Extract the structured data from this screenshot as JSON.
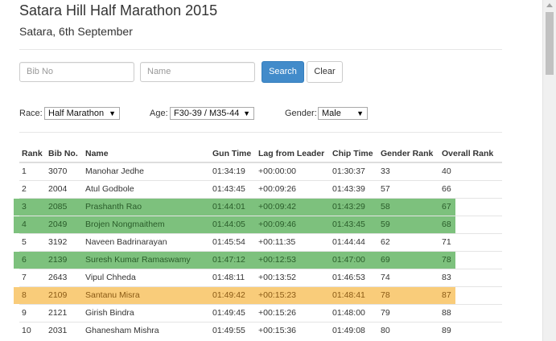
{
  "header": {
    "title": "Satara Hill Half Marathon 2015",
    "subtitle": "Satara, 6th September"
  },
  "search": {
    "bib_placeholder": "Bib No",
    "name_placeholder": "Name",
    "search_label": "Search",
    "clear_label": "Clear"
  },
  "filters": {
    "race_label": "Race:",
    "race_value": "Half Marathon",
    "age_label": "Age:",
    "age_value": "F30-39 / M35-44",
    "gender_label": "Gender:",
    "gender_value": "Male"
  },
  "colors": {
    "highlight_green": "#7dc17d",
    "highlight_orange": "#f9cc7a",
    "primary_button": "#428bca"
  },
  "table": {
    "columns": [
      "Rank",
      "Bib No.",
      "Name",
      "Gun Time",
      "Lag from Leader",
      "Chip Time",
      "Gender Rank",
      "Overall Rank"
    ],
    "rows": [
      {
        "rank": "1",
        "bib": "3070",
        "name": "Manohar Jedhe",
        "gun": "01:34:19",
        "lag": "+00:00:00",
        "chip": "01:30:37",
        "gender_rank": "33",
        "overall": "40",
        "highlight": ""
      },
      {
        "rank": "2",
        "bib": "2004",
        "name": "Atul Godbole",
        "gun": "01:43:45",
        "lag": "+00:09:26",
        "chip": "01:43:39",
        "gender_rank": "57",
        "overall": "66",
        "highlight": ""
      },
      {
        "rank": "3",
        "bib": "2085",
        "name": "Prashanth Rao",
        "gun": "01:44:01",
        "lag": "+00:09:42",
        "chip": "01:43:29",
        "gender_rank": "58",
        "overall": "67",
        "highlight": "green"
      },
      {
        "rank": "4",
        "bib": "2049",
        "name": "Brojen Nongmaithem",
        "gun": "01:44:05",
        "lag": "+00:09:46",
        "chip": "01:43:45",
        "gender_rank": "59",
        "overall": "68",
        "highlight": "green"
      },
      {
        "rank": "5",
        "bib": "3192",
        "name": "Naveen Badrinarayan",
        "gun": "01:45:54",
        "lag": "+00:11:35",
        "chip": "01:44:44",
        "gender_rank": "62",
        "overall": "71",
        "highlight": ""
      },
      {
        "rank": "6",
        "bib": "2139",
        "name": "Suresh Kumar Ramaswamy",
        "gun": "01:47:12",
        "lag": "+00:12:53",
        "chip": "01:47:00",
        "gender_rank": "69",
        "overall": "78",
        "highlight": "green"
      },
      {
        "rank": "7",
        "bib": "2643",
        "name": "Vipul Chheda",
        "gun": "01:48:11",
        "lag": "+00:13:52",
        "chip": "01:46:53",
        "gender_rank": "74",
        "overall": "83",
        "highlight": ""
      },
      {
        "rank": "8",
        "bib": "2109",
        "name": "Santanu Misra",
        "gun": "01:49:42",
        "lag": "+00:15:23",
        "chip": "01:48:41",
        "gender_rank": "78",
        "overall": "87",
        "highlight": "orange"
      },
      {
        "rank": "9",
        "bib": "2121",
        "name": "Girish Bindra",
        "gun": "01:49:45",
        "lag": "+00:15:26",
        "chip": "01:48:00",
        "gender_rank": "79",
        "overall": "88",
        "highlight": ""
      },
      {
        "rank": "10",
        "bib": "2031",
        "name": "Ghanesham Mishra",
        "gun": "01:49:55",
        "lag": "+00:15:36",
        "chip": "01:49:08",
        "gender_rank": "80",
        "overall": "89",
        "highlight": ""
      }
    ]
  }
}
